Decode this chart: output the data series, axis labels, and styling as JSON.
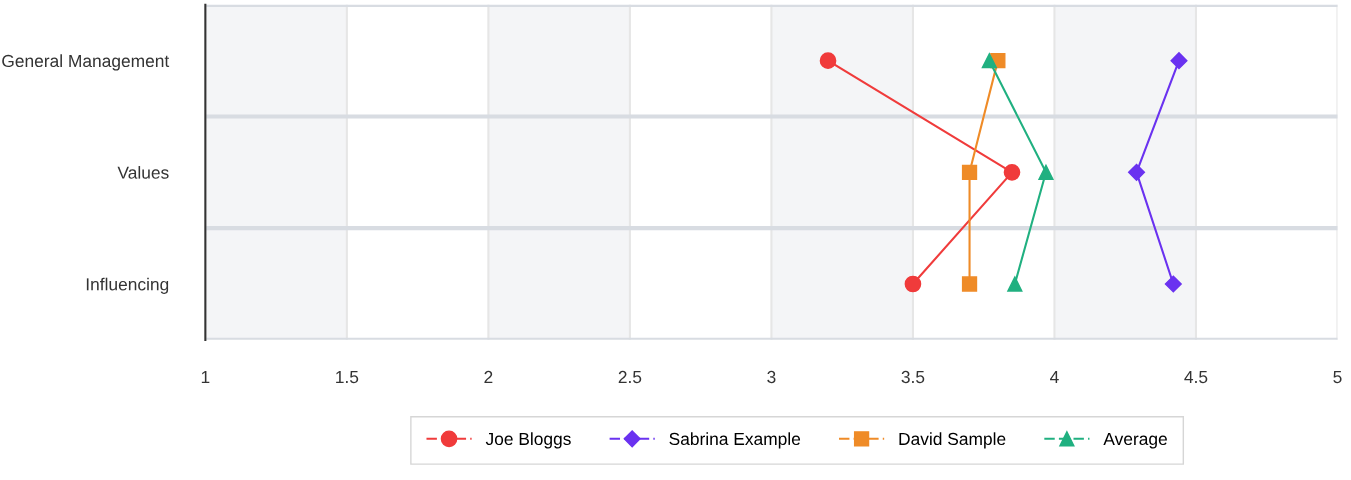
{
  "chart_data": {
    "type": "line",
    "orientation": "horizontal",
    "categories": [
      "General Management",
      "Values",
      "Influencing"
    ],
    "xlim": [
      1,
      5
    ],
    "xticks": [
      1,
      1.5,
      2,
      2.5,
      3,
      3.5,
      4,
      4.5,
      5
    ],
    "grid": true,
    "legend": "bottom",
    "line_style": "solid",
    "bands": [
      {
        "axis": "x",
        "from": 1,
        "to": 1.5,
        "color": "#f4f5f7"
      },
      {
        "axis": "x",
        "from": 2,
        "to": 2.5,
        "color": "#f4f5f7"
      },
      {
        "axis": "x",
        "from": 3,
        "to": 3.5,
        "color": "#f4f5f7"
      },
      {
        "axis": "x",
        "from": 4,
        "to": 4.5,
        "color": "#f4f5f7"
      }
    ],
    "series": [
      {
        "name": "Joe Bloggs",
        "color": "#f03b3b",
        "marker": "circle",
        "values": [
          3.2,
          3.85,
          3.5
        ]
      },
      {
        "name": "Sabrina Example",
        "color": "#6a32f0",
        "marker": "diamond",
        "values": [
          4.44,
          4.29,
          4.42
        ]
      },
      {
        "name": "David Sample",
        "color": "#ef8b27",
        "marker": "square",
        "values": [
          3.8,
          3.7,
          3.7
        ]
      },
      {
        "name": "Average",
        "color": "#20b080",
        "marker": "triangle",
        "values": [
          3.77,
          3.97,
          3.86
        ]
      }
    ]
  }
}
